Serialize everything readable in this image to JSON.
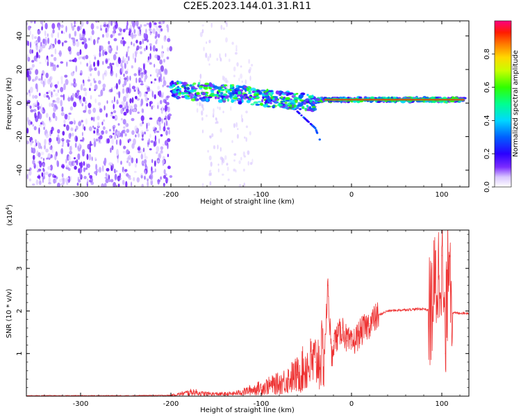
{
  "title": "C2E5.2023.144.01.31.R11",
  "chart_data": [
    {
      "type": "heatmap",
      "xlabel": "Height of straight line (km)",
      "ylabel": "Frequency (Hz)",
      "xlim": [
        -360,
        130
      ],
      "ylim": [
        -50,
        49
      ],
      "xticks": [
        -300,
        -200,
        -100,
        0,
        100
      ],
      "yticks": [
        -40,
        -20,
        0,
        20,
        40
      ],
      "colorbar": {
        "label": "Normalized spectral amplitude",
        "range": [
          0,
          1
        ],
        "ticks": [
          "0.0",
          "0.2",
          "0.4",
          "0.6",
          "0.8"
        ],
        "tick_values": [
          0,
          0.2,
          0.4,
          0.6,
          0.8
        ]
      },
      "ridge": {
        "x": [
          -200,
          -180,
          -160,
          -140,
          -120,
          -100,
          -80,
          -60,
          -45,
          -35,
          -20,
          0,
          40,
          80,
          100,
          125
        ],
        "y": [
          8,
          7,
          6.5,
          6,
          5,
          3.5,
          2,
          1,
          0,
          2,
          2,
          2,
          2,
          2,
          2,
          2
        ]
      },
      "noise_region_x": [
        -360,
        -200
      ],
      "side_branch": {
        "x": [
          -60,
          -40,
          -35
        ],
        "y": [
          -5,
          -15,
          -22
        ]
      }
    },
    {
      "type": "line",
      "xlabel": "Height of straight line (km)",
      "ylabel": "SNR (10 * v/v)",
      "yscale_label": "(x10",
      "yscale_exp": "4",
      "yscale_close": ")",
      "xlim": [
        -360,
        130
      ],
      "ylim": [
        0,
        3.9
      ],
      "xticks": [
        -300,
        -200,
        -100,
        0,
        100
      ],
      "yticks": [
        1,
        2,
        3
      ],
      "series": [
        {
          "color": "#ee3333",
          "x": [
            -360,
            -300,
            -250,
            -200,
            -190,
            -175,
            -165,
            -150,
            -140,
            -130,
            -120,
            -110,
            -100,
            -90,
            -80,
            -70,
            -60,
            -50,
            -40,
            -30,
            -26,
            -22,
            -20,
            -15,
            -10,
            -5,
            0,
            10,
            20,
            30,
            40,
            60,
            80,
            88,
            92,
            96,
            100,
            104,
            108,
            112,
            120,
            130
          ],
          "y": [
            0.01,
            0.01,
            0.01,
            0.02,
            0.05,
            0.1,
            0.06,
            0.05,
            0.05,
            0.06,
            0.1,
            0.15,
            0.2,
            0.25,
            0.3,
            0.4,
            0.5,
            0.7,
            0.8,
            1.0,
            2.6,
            0.8,
            1.3,
            1.4,
            1.6,
            1.3,
            1.2,
            1.5,
            1.7,
            1.9,
            2.0,
            2.03,
            2.05,
            2.0,
            2.5,
            2.8,
            3.3,
            1.0,
            3.9,
            1.95,
            1.95,
            1.95
          ]
        }
      ]
    }
  ]
}
